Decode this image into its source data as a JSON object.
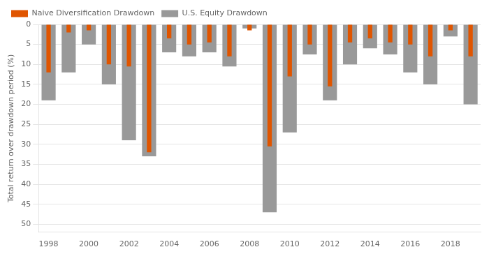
{
  "chart_data": {
    "type": "bar",
    "ylabel": "Total return over drawdown period (%)",
    "categories": [
      "1998",
      null,
      "2000",
      null,
      "2002",
      null,
      "2004",
      null,
      "2006",
      null,
      "2008",
      null,
      "2010",
      null,
      "2012",
      null,
      "2014",
      null,
      "2016",
      null,
      "2018",
      null
    ],
    "series": [
      {
        "name": "U.S. Equity Drawdown",
        "color": "#999999",
        "values": [
          19.0,
          12.0,
          5.0,
          15.0,
          29.0,
          33.0,
          7.0,
          8.0,
          7.0,
          10.5,
          1.0,
          47.0,
          27.0,
          7.5,
          19.0,
          10.0,
          6.0,
          7.5,
          12.0,
          15.0,
          3.0,
          20.0
        ]
      },
      {
        "name": "Naive Diversification Drawdown",
        "color": "#e05500",
        "values": [
          12.0,
          2.0,
          1.5,
          10.0,
          10.5,
          32.0,
          3.5,
          5.0,
          4.5,
          8.0,
          1.5,
          30.5,
          13.0,
          5.0,
          15.5,
          4.5,
          3.5,
          4.5,
          5.0,
          8.0,
          1.5,
          8.0
        ]
      }
    ],
    "ylim": [
      0,
      52
    ],
    "yticks": [
      0,
      5,
      10,
      15,
      20,
      25,
      30,
      35,
      40,
      45,
      50
    ],
    "grid": "y",
    "legend": "upper left"
  }
}
